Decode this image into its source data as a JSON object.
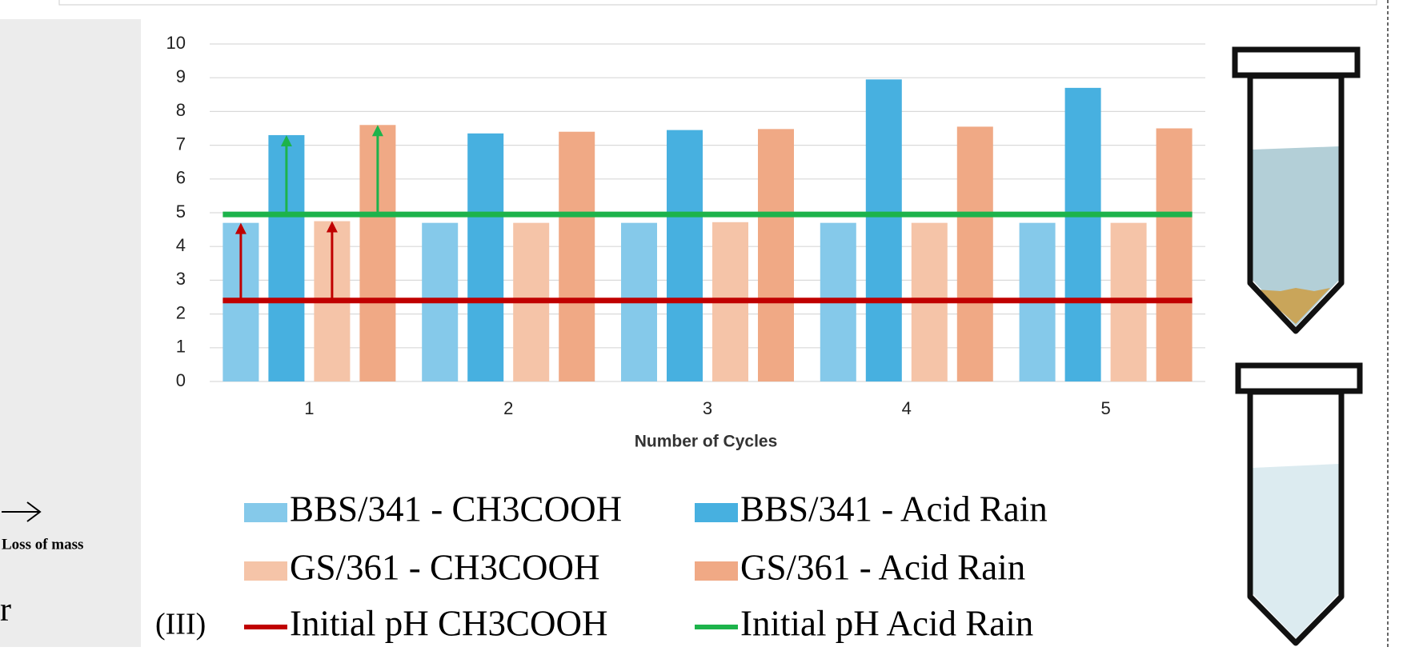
{
  "chart_data": {
    "type": "bar",
    "x_label": "Number of Cycles",
    "panel_label": "(III)",
    "side_note": "Loss of mass",
    "side_letter": "r",
    "categories": [
      "1",
      "2",
      "3",
      "4",
      "5"
    ],
    "series": [
      {
        "name": "BBS/341 - CH3COOH",
        "color": "#85c9ea",
        "values": [
          4.7,
          4.7,
          4.7,
          4.7,
          4.7
        ]
      },
      {
        "name": "BBS/341 - Acid Rain",
        "color": "#47b0e0",
        "values": [
          7.3,
          7.35,
          7.45,
          8.95,
          8.7
        ]
      },
      {
        "name": "GS/361 - CH3COOH",
        "color": "#f5c4a8",
        "values": [
          4.75,
          4.7,
          4.72,
          4.7,
          4.7
        ]
      },
      {
        "name": "GS/361 - Acid Rain",
        "color": "#f0a985",
        "values": [
          7.6,
          7.4,
          7.48,
          7.55,
          7.5
        ]
      },
      {
        "name": "Initial pH CH3COOH",
        "color": "#c00000",
        "value": 2.4
      },
      {
        "name": "Initial pH Acid Rain",
        "color": "#1db34b",
        "value": 4.95
      }
    ],
    "ylim": [
      0,
      10
    ],
    "yticks": [
      0,
      1,
      2,
      3,
      4,
      5,
      6,
      7,
      8,
      9,
      10
    ],
    "grid": true
  }
}
